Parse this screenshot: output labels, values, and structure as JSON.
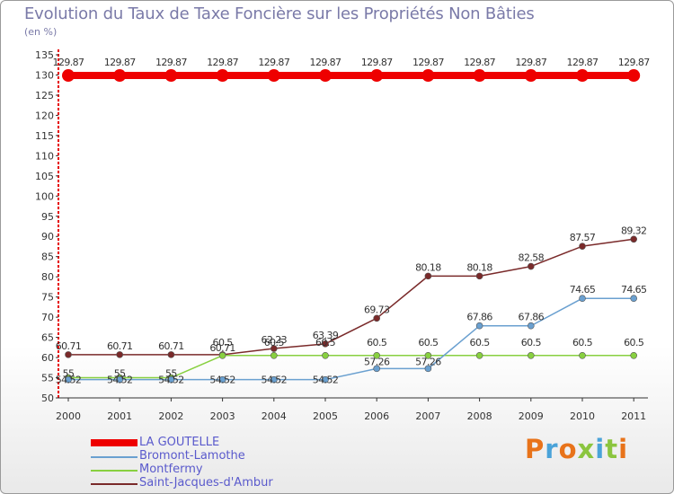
{
  "header": {
    "title": "Evolution du Taux de Taxe Foncière sur les Propriétés Non Bâties",
    "unit": "(en %)"
  },
  "brand": {
    "logo": "Proxiti"
  },
  "colors": {
    "title": "#7a7aa8",
    "axis": "#333333",
    "red_axis": "#e60000",
    "legend_text": "#5a5acc"
  },
  "chart_data": {
    "type": "line",
    "title": "Evolution du Taux de Taxe Foncière sur les Propriétés Non Bâties",
    "ylabel": "(en %)",
    "xlabel": "",
    "ylim": [
      50,
      135
    ],
    "grid": false,
    "legend_position": "bottom-left",
    "y_ticks": [
      50,
      55,
      60,
      65,
      70,
      75,
      80,
      85,
      90,
      95,
      100,
      105,
      110,
      115,
      120,
      125,
      130,
      135
    ],
    "categories": [
      "2000",
      "2001",
      "2002",
      "2003",
      "2004",
      "2005",
      "2006",
      "2007",
      "2008",
      "2009",
      "2010",
      "2011"
    ],
    "series": [
      {
        "name": "LA GOUTELLE",
        "color": "#ee0000",
        "values": [
          129.87,
          129.87,
          129.87,
          129.87,
          129.87,
          129.87,
          129.87,
          129.87,
          129.87,
          129.87,
          129.87,
          129.87
        ],
        "labels": [
          "129.87",
          "129.87",
          "129.87",
          "129.87",
          "129.87",
          "129.87",
          "129.87",
          "129.87",
          "129.87",
          "129.87",
          "129.87",
          "129.87"
        ]
      },
      {
        "name": "Bromont-Lamothe",
        "color": "#6aa0d0",
        "values": [
          54.52,
          54.52,
          54.52,
          54.52,
          54.52,
          54.52,
          57.26,
          57.26,
          67.86,
          67.86,
          74.65,
          74.65
        ],
        "labels": [
          "54.52",
          "54.52",
          "54.52",
          "54.52",
          "54.52",
          "54.52",
          "57.26",
          "57.26",
          "67.86",
          "67.86",
          "74.65",
          "74.65"
        ]
      },
      {
        "name": "Montfermy",
        "color": "#88d040",
        "values": [
          55,
          55,
          55,
          60.5,
          60.5,
          60.5,
          60.5,
          60.5,
          60.5,
          60.5,
          60.5,
          60.5
        ],
        "labels": [
          "55",
          "55",
          "55",
          "60.5",
          "60.5",
          "60.5",
          "60.5",
          "60.5",
          "60.5",
          "60.5",
          "60.5",
          "60.5"
        ]
      },
      {
        "name": "Saint-Jacques-d'Ambur",
        "color": "#7a2a2a",
        "values": [
          60.71,
          60.71,
          60.71,
          60.71,
          62.23,
          63.39,
          69.73,
          80.18,
          80.18,
          82.58,
          87.57,
          89.32
        ],
        "labels": [
          "60.71",
          "60.71",
          "60.71",
          "60.71",
          "62.23",
          "63.39",
          "69.73",
          "80.18",
          "80.18",
          "82.58",
          "87.57",
          "89.32"
        ]
      }
    ]
  }
}
